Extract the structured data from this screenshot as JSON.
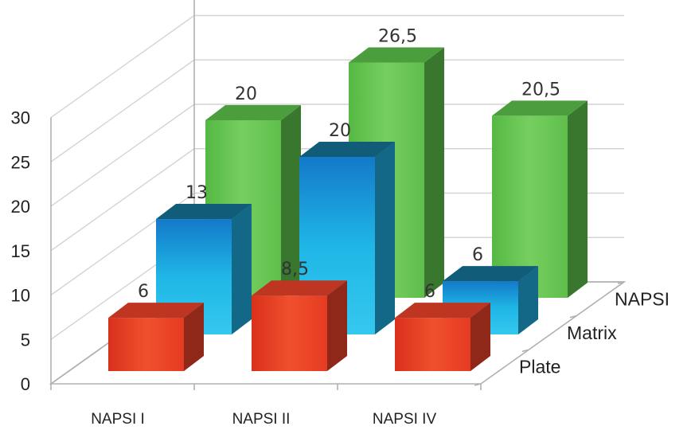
{
  "chart_data": {
    "type": "bar",
    "categories": [
      "NAPSI I",
      "NAPSI II",
      "NAPSI IV"
    ],
    "series": [
      {
        "name": "Plate",
        "values": [
          6,
          8.5,
          6
        ],
        "labels": [
          "6",
          "8,5",
          "6"
        ],
        "color": "#e8412a"
      },
      {
        "name": "Matrix",
        "values": [
          13,
          20,
          6
        ],
        "labels": [
          "13",
          "20",
          "6"
        ],
        "color": "#1ea8dc"
      },
      {
        "name": "NAPSI",
        "values": [
          20,
          26.5,
          20.5
        ],
        "labels": [
          "20",
          "26,5",
          "20,5"
        ],
        "color": "#5cbf4a"
      }
    ],
    "y_ticks": [
      "0",
      "5",
      "10",
      "15",
      "20",
      "25",
      "30"
    ],
    "ylim": [
      0,
      30
    ],
    "grid": true
  }
}
